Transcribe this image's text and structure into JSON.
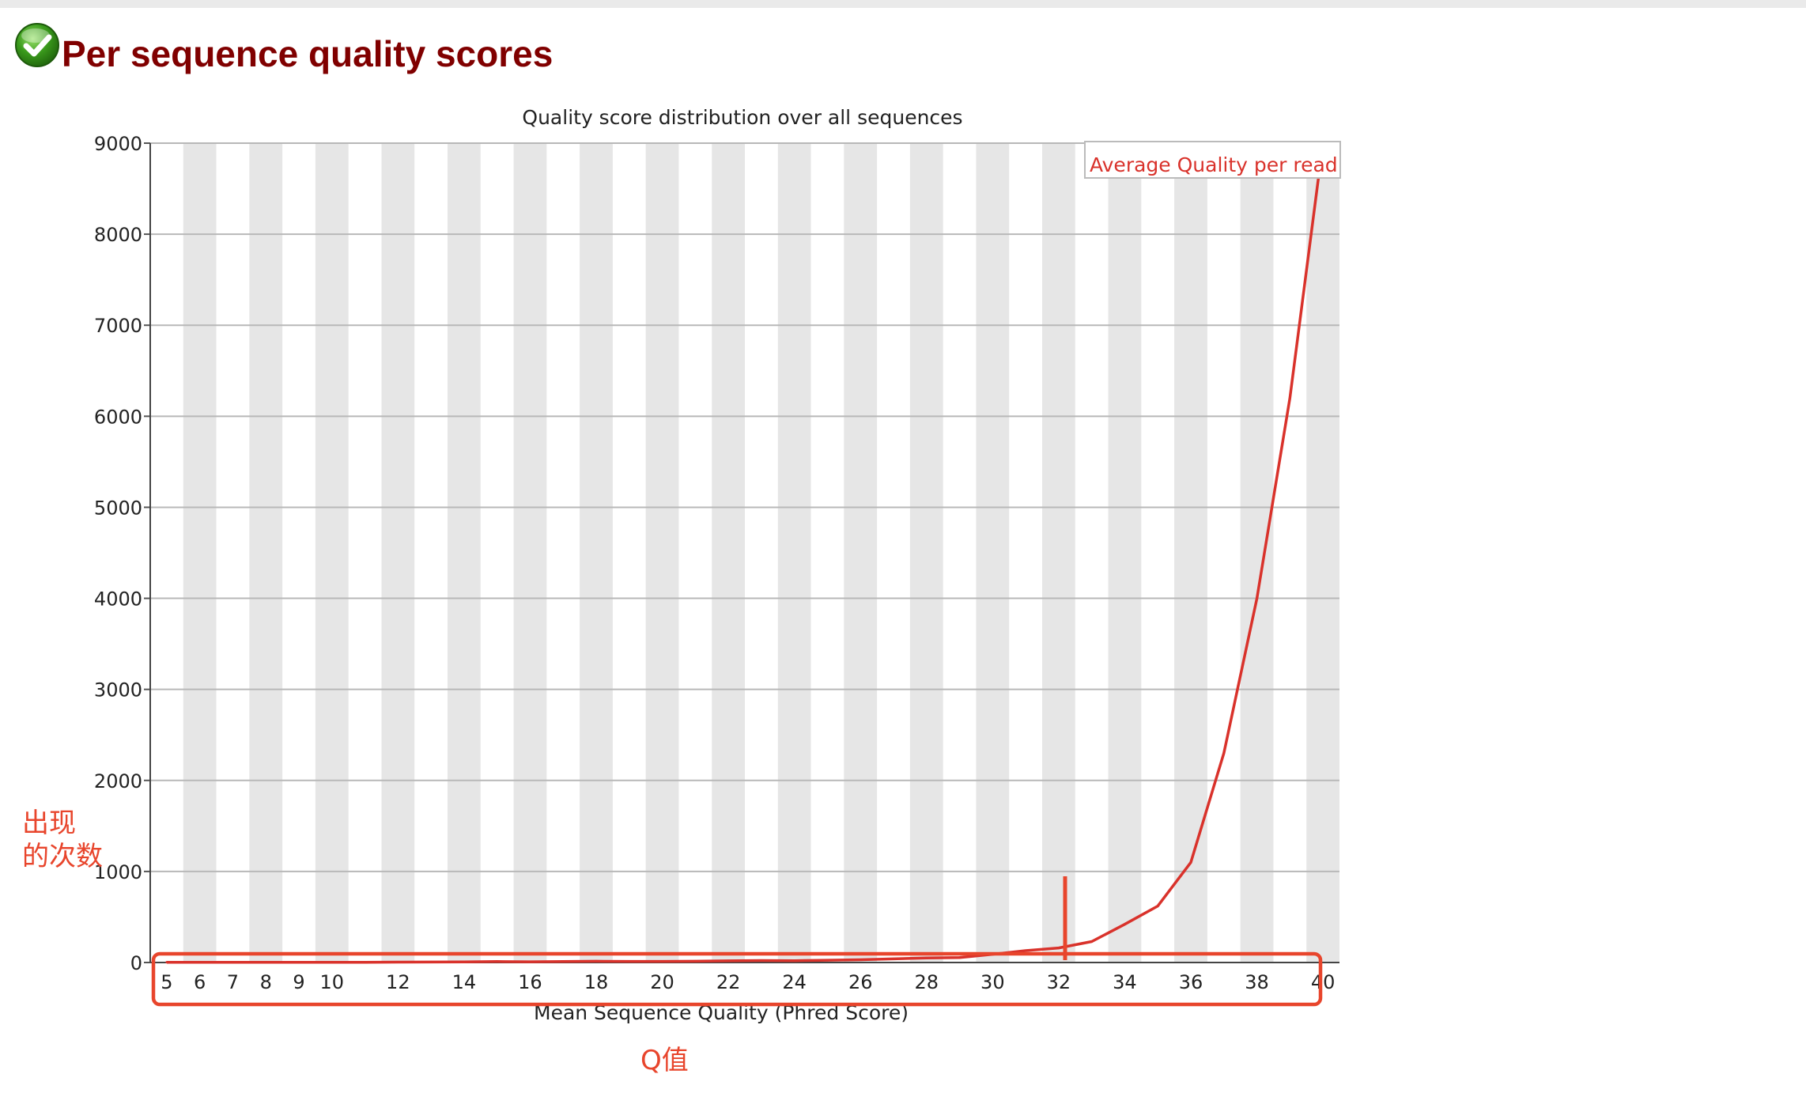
{
  "header": {
    "title": "Per sequence quality scores",
    "status_icon": "check-circle-icon",
    "status": "pass",
    "status_color": "#3a9a1c",
    "title_color": "#800000"
  },
  "chart_data": {
    "type": "line",
    "title": "Quality score distribution over all sequences",
    "xlabel": "Mean Sequence Quality (Phred Score)",
    "ylabel": "",
    "xlim": [
      5,
      40
    ],
    "ylim": [
      0,
      9000
    ],
    "yticks": [
      0,
      1000,
      2000,
      3000,
      4000,
      5000,
      6000,
      7000,
      8000,
      9000
    ],
    "xticks": [
      5,
      6,
      7,
      8,
      9,
      10,
      12,
      14,
      16,
      18,
      20,
      22,
      24,
      26,
      28,
      30,
      32,
      34,
      36,
      38,
      40
    ],
    "grid": true,
    "alternating_bands": true,
    "legend": "top-right",
    "series": [
      {
        "name": "Average Quality per read",
        "color": "#d9322b",
        "x": [
          5,
          6,
          7,
          8,
          9,
          10,
          11,
          12,
          13,
          14,
          15,
          16,
          17,
          18,
          19,
          20,
          21,
          22,
          23,
          24,
          25,
          26,
          27,
          28,
          29,
          30,
          31,
          32,
          33,
          34,
          35,
          36,
          37,
          38,
          39,
          40
        ],
        "values": [
          3,
          2,
          2,
          2,
          2,
          3,
          3,
          4,
          5,
          6,
          10,
          8,
          10,
          14,
          12,
          12,
          14,
          18,
          22,
          20,
          25,
          30,
          40,
          50,
          55,
          90,
          130,
          160,
          230,
          420,
          620,
          1100,
          2300,
          4000,
          6200,
          9000
        ]
      }
    ]
  },
  "annotations": {
    "y_note": [
      "出现",
      "的次数"
    ],
    "x_note": "Q值",
    "color": "#e8452c"
  }
}
